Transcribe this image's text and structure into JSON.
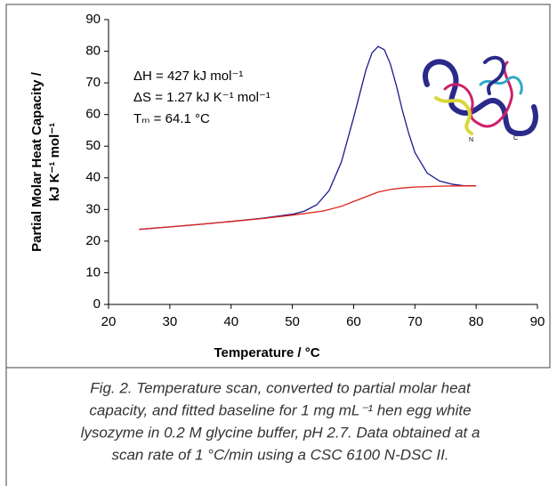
{
  "chart_data": {
    "type": "line",
    "xlabel": "Temperature / °C",
    "ylabel": [
      "Partial Molar Heat Capacity /",
      "kJ K⁻¹ mol⁻¹"
    ],
    "xlim": [
      20,
      90
    ],
    "xticks": [
      20,
      30,
      40,
      50,
      60,
      70,
      80,
      90
    ],
    "ylim": [
      0,
      90
    ],
    "yticks": [
      0,
      10,
      20,
      30,
      40,
      50,
      60,
      70,
      80,
      90
    ],
    "grid": false,
    "series": [
      {
        "color": "#1a1a8c",
        "x": [
          25,
          30,
          35,
          40,
          45,
          50,
          52,
          54,
          56,
          58,
          60,
          62,
          63,
          64,
          65,
          66,
          67,
          68,
          69,
          70,
          72,
          74,
          76,
          78,
          80
        ],
        "values": [
          23.7,
          24.5,
          25.3,
          26.2,
          27.2,
          28.5,
          29.5,
          31.5,
          36,
          45,
          59,
          74,
          79.5,
          81.5,
          80.5,
          76,
          69,
          61,
          54,
          48,
          41.5,
          39,
          38,
          37.5,
          37.5
        ]
      },
      {
        "color": "#e0201a",
        "x": [
          25,
          30,
          35,
          40,
          45,
          50,
          55,
          58,
          60,
          62,
          64,
          66,
          68,
          70,
          75,
          80
        ],
        "values": [
          23.7,
          24.5,
          25.3,
          26.2,
          27.1,
          28.2,
          29.5,
          31,
          32.5,
          34,
          35.5,
          36.3,
          36.8,
          37.1,
          37.4,
          37.5
        ]
      }
    ],
    "annotations": [
      "ΔH = 427 kJ mol⁻¹",
      "ΔS = 1.27 kJ K⁻¹ mol⁻¹",
      "Tₘ = 64.1 °C"
    ],
    "protein_labels": [
      "N",
      "C"
    ],
    "caption": [
      "Fig. 2. Temperature scan, converted to partial molar heat",
      "capacity, and fitted baseline for 1 mg mL⁻¹ hen egg white",
      "lysozyme in 0.2 M glycine buffer, pH 2.7. Data obtained at a",
      "scan rate of 1 °C/min using a CSC 6100 N-DSC II."
    ]
  }
}
